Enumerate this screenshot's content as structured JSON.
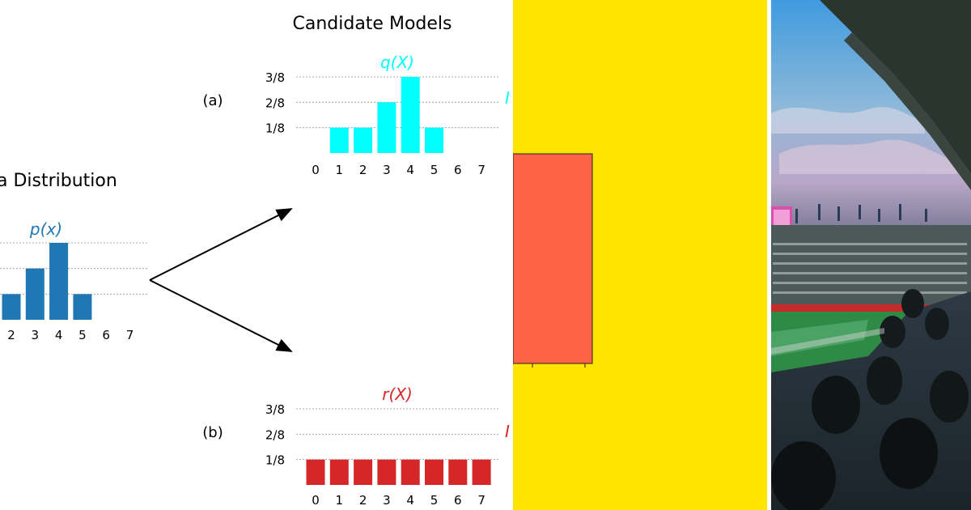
{
  "diagram": {
    "title": "Candidate Models",
    "data_title": "a Distribution",
    "p_label": "p(x)",
    "q_label": "q(X)",
    "r_label": "r(X)",
    "model_a_label": "(a)",
    "model_b_label": "(b)",
    "cut_label_a": "I",
    "cut_label_b": "I",
    "colors": {
      "p": "#1f77b4",
      "q": "#00ffff",
      "r": "#d62728",
      "rect": "#ff6347",
      "yellow": "#ffe400"
    }
  },
  "chart_data": [
    {
      "type": "bar",
      "name": "p(x)",
      "categories": [
        "2",
        "3",
        "4",
        "5",
        "6",
        "7"
      ],
      "values": [
        0.125,
        0.25,
        0.375,
        0.125,
        0,
        0
      ],
      "ylim": [
        0,
        0.375
      ],
      "grid": true
    },
    {
      "type": "bar",
      "name": "q(X)",
      "categories": [
        "0",
        "1",
        "2",
        "3",
        "4",
        "5",
        "6",
        "7"
      ],
      "values": [
        0,
        0.125,
        0.125,
        0.25,
        0.375,
        0.125,
        0,
        0
      ],
      "yticks": [
        "1/8",
        "2/8",
        "3/8"
      ],
      "ylim": [
        0,
        0.375
      ],
      "grid": true
    },
    {
      "type": "bar",
      "name": "r(X)",
      "categories": [
        "0",
        "1",
        "2",
        "3",
        "4",
        "5",
        "6",
        "7"
      ],
      "values": [
        0.125,
        0.125,
        0.125,
        0.125,
        0.125,
        0.125,
        0.125,
        0.125
      ],
      "yticks": [
        "1/8",
        "2/8",
        "3/8"
      ],
      "ylim": [
        0,
        0.375
      ],
      "grid": true
    }
  ],
  "photo": {
    "subject": "stadium-crowd-at-dusk"
  }
}
